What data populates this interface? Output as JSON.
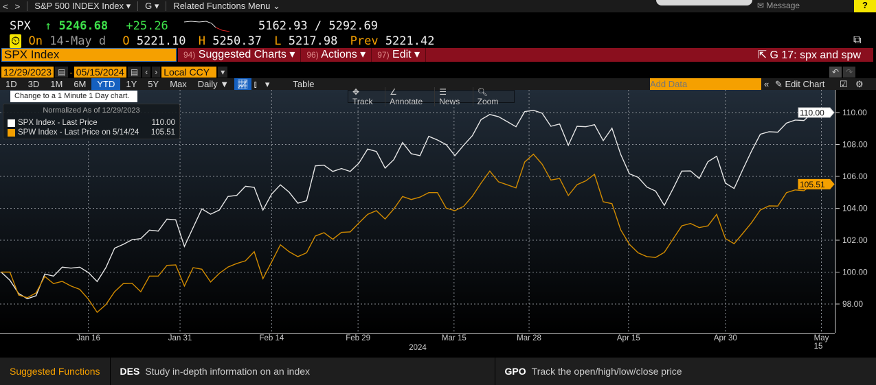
{
  "nav": {
    "back": "<",
    "fwd": ">",
    "security": "S&P 500 INDEX Index ▾",
    "func": "G ▾",
    "related": "Related Functions Menu ⌄",
    "message": "Message",
    "help": "?"
  },
  "quote": {
    "ticker": "SPX",
    "arrow": "↑",
    "last": "5246.68",
    "change": "+25.26",
    "range": "5162.93 / 5292.69",
    "on_label": "On",
    "date": "14-May d",
    "open_label": "O",
    "open": "5221.10",
    "high_label": "H",
    "high": "5250.37",
    "low_label": "L",
    "low": "5217.98",
    "prev_label": "Prev",
    "prev": "5221.42"
  },
  "command": {
    "value": "SPX Index",
    "menus": [
      {
        "num": "94)",
        "label": "Suggested Charts ▾"
      },
      {
        "num": "96)",
        "label": "Actions ▾"
      },
      {
        "num": "97)",
        "label": "Edit ▾"
      }
    ],
    "chart_name": "G 17: spx and spw"
  },
  "range": {
    "start": "12/29/2023",
    "dash": "-",
    "end": "05/15/2024",
    "currency": "Local CCY"
  },
  "toolbar": {
    "periods": [
      "1D",
      "3D",
      "1M",
      "6M",
      "YTD",
      "1Y",
      "5Y",
      "Max"
    ],
    "active": "YTD",
    "frequency": "Daily ▼",
    "table": "Table",
    "add_data_placeholder": "Add Data",
    "edit_chart": "Edit Chart"
  },
  "tooltip": "Change to a 1 Minute 1 Day chart.",
  "chart_tools": [
    "Track",
    "Annotate",
    "News",
    "Zoom"
  ],
  "bottom": {
    "title": "Suggested Functions",
    "items": [
      {
        "code": "DES",
        "desc": "Study in-depth information on an index"
      },
      {
        "code": "GPO",
        "desc": "Track the open/high/low/close price"
      }
    ]
  },
  "colors": {
    "spx": "#e6e6e6",
    "spw": "#d08a00",
    "accent": "#f5a000",
    "red_bar": "#8a0f1e"
  },
  "chart_data": {
    "type": "line",
    "title": "Normalized As of 12/29/2023",
    "xlabel": "2024",
    "ylim": [
      96.5,
      111.5
    ],
    "yticks": [
      "98.00",
      "100.00",
      "102.00",
      "104.00",
      "106.00",
      "108.00",
      "110.00"
    ],
    "ytick_values": [
      98,
      100,
      102,
      104,
      106,
      108,
      110
    ],
    "xticks": [
      "Jan 16",
      "Jan 31",
      "Feb 14",
      "Feb 29",
      "Mar 15",
      "Mar 28",
      "Apr 15",
      "Apr 30",
      "May 15"
    ],
    "xtick_index": [
      10,
      20.5,
      31,
      40.9,
      51.9,
      60.5,
      71.9,
      83,
      94
    ],
    "legend_position": "top-left",
    "series": [
      {
        "name": "SPX Index - Last Price",
        "last_label": "110.00",
        "color": "#e6e6e6",
        "values": [
          100.0,
          99.49,
          98.66,
          98.33,
          98.52,
          99.88,
          99.75,
          100.31,
          100.25,
          100.31,
          99.97,
          99.41,
          100.28,
          101.5,
          101.74,
          102.03,
          102.1,
          102.63,
          102.57,
          103.32,
          103.28,
          101.61,
          102.79,
          103.96,
          103.63,
          103.89,
          104.74,
          104.81,
          105.38,
          105.31,
          103.89,
          104.89,
          105.47,
          105.01,
          104.32,
          104.47,
          106.66,
          106.7,
          106.31,
          106.49,
          106.31,
          106.83,
          107.71,
          107.56,
          106.52,
          107.05,
          108.12,
          107.42,
          107.3,
          108.51,
          108.28,
          107.99,
          107.3,
          107.95,
          108.55,
          109.56,
          109.88,
          109.74,
          109.43,
          109.11,
          110.06,
          110.14,
          109.96,
          109.14,
          109.28,
          107.95,
          109.14,
          109.11,
          109.24,
          108.24,
          109.02,
          107.38,
          106.16,
          105.94,
          105.33,
          105.08,
          104.18,
          105.23,
          106.33,
          106.34,
          105.87,
          106.92,
          107.26,
          105.58,
          105.24,
          106.44,
          107.59,
          108.64,
          108.8,
          108.77,
          109.34,
          109.53,
          109.5,
          110.0
        ]
      },
      {
        "name": "SPW Index - Last Price on 5/14/24",
        "last_label": "105.51",
        "color": "#d08a00",
        "values": [
          100.0,
          100.0,
          98.56,
          98.4,
          98.7,
          99.73,
          99.28,
          99.42,
          99.13,
          98.92,
          98.3,
          97.48,
          97.96,
          98.77,
          99.28,
          99.3,
          98.77,
          99.75,
          99.75,
          100.42,
          100.45,
          99.13,
          100.28,
          100.18,
          99.38,
          99.92,
          100.32,
          100.54,
          100.71,
          101.28,
          99.59,
          100.64,
          101.71,
          101.28,
          100.97,
          101.21,
          102.26,
          102.47,
          102.06,
          102.49,
          102.52,
          103.08,
          103.62,
          103.85,
          103.33,
          103.96,
          104.74,
          104.55,
          104.7,
          104.98,
          104.98,
          104.01,
          103.85,
          104.12,
          104.75,
          105.58,
          106.33,
          105.66,
          105.47,
          105.28,
          106.9,
          107.39,
          106.76,
          105.77,
          105.87,
          104.8,
          105.48,
          105.72,
          106.13,
          104.41,
          104.29,
          102.65,
          101.74,
          101.21,
          100.97,
          100.92,
          101.24,
          102.07,
          102.9,
          103.05,
          102.79,
          102.9,
          103.62,
          102.1,
          101.78,
          102.43,
          103.1,
          103.89,
          104.15,
          104.14,
          104.98,
          105.15,
          105.1,
          105.51
        ]
      }
    ]
  }
}
